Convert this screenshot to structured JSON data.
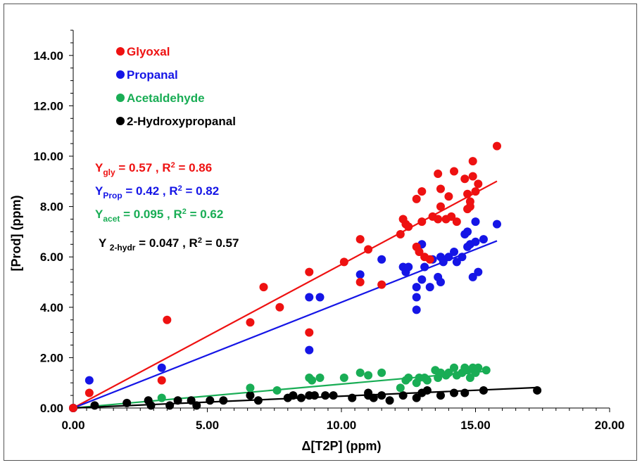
{
  "chart_data": {
    "type": "scatter",
    "xlabel": "Δ[T2P] (ppm)",
    "ylabel": "[Prod] (ppm)",
    "xlim": [
      0,
      20
    ],
    "ylim": [
      0,
      15
    ],
    "x_ticks": [
      "0.00",
      "5.00",
      "10.00",
      "15.00",
      "20.00"
    ],
    "y_ticks": [
      "0.00",
      "2.00",
      "4.00",
      "6.00",
      "8.00",
      "10.00",
      "12.00",
      "14.00"
    ],
    "legend_position": "top-left",
    "series": [
      {
        "name": "Glyoxal",
        "color": "#ee1111",
        "slope": 0.57,
        "x": [
          0,
          0.6,
          3.3,
          3.5,
          6.6,
          7.1,
          7.7,
          8.8,
          8.8,
          10.1,
          10.7,
          10.7,
          11.0,
          11.5,
          12.2,
          12.3,
          12.4,
          12.5,
          12.8,
          12.8,
          12.9,
          13.0,
          13.0,
          13.1,
          13.3,
          13.4,
          13.6,
          13.6,
          13.7,
          13.7,
          13.9,
          14.0,
          14.1,
          14.2,
          14.3,
          14.6,
          14.7,
          14.7,
          14.8,
          14.8,
          14.9,
          14.9,
          15.0,
          15.1,
          15.8
        ],
        "y": [
          0,
          0.6,
          1.1,
          3.5,
          3.4,
          4.8,
          4.0,
          5.4,
          3.0,
          5.8,
          6.7,
          5.0,
          6.3,
          4.9,
          6.9,
          7.5,
          7.3,
          7.2,
          8.3,
          6.4,
          6.2,
          7.4,
          8.6,
          6.0,
          5.9,
          7.6,
          7.5,
          9.3,
          8.7,
          8.0,
          7.5,
          8.4,
          7.6,
          9.4,
          7.4,
          9.1,
          8.5,
          7.9,
          8.2,
          8.0,
          9.8,
          9.2,
          8.6,
          8.9,
          10.4
        ]
      },
      {
        "name": "Propanal",
        "color": "#1515e6",
        "slope": 0.42,
        "x": [
          0,
          0.6,
          3.3,
          8.8,
          8.8,
          9.2,
          10.7,
          11.5,
          12.3,
          12.4,
          12.5,
          12.8,
          12.8,
          12.8,
          13.0,
          13.0,
          13.1,
          13.3,
          13.4,
          13.6,
          13.7,
          13.7,
          13.8,
          14.0,
          14.2,
          14.3,
          14.5,
          14.6,
          14.7,
          14.7,
          14.8,
          14.9,
          15.0,
          15.0,
          15.1,
          15.3,
          15.8
        ],
        "y": [
          0,
          1.1,
          1.6,
          4.4,
          2.3,
          4.4,
          5.3,
          5.9,
          5.6,
          5.4,
          5.6,
          4.4,
          3.9,
          4.8,
          6.5,
          5.1,
          5.6,
          4.8,
          5.9,
          5.2,
          6.0,
          5.0,
          5.8,
          6.0,
          6.2,
          5.8,
          6.0,
          6.9,
          7.0,
          6.4,
          6.5,
          5.2,
          7.4,
          6.6,
          5.4,
          6.7,
          7.3
        ]
      },
      {
        "name": "Acetaldehyde",
        "color": "#19ad55",
        "slope": 0.095,
        "x": [
          0,
          3.3,
          6.6,
          7.6,
          8.8,
          8.9,
          9.2,
          10.1,
          10.7,
          11.0,
          11.5,
          12.2,
          12.4,
          12.5,
          12.8,
          12.9,
          13.1,
          13.2,
          13.5,
          13.6,
          13.7,
          13.9,
          14.0,
          14.2,
          14.3,
          14.5,
          14.6,
          14.7,
          14.8,
          14.9,
          15.0,
          15.1,
          15.4
        ],
        "y": [
          0,
          0.4,
          0.8,
          0.7,
          1.2,
          1.1,
          1.2,
          1.2,
          1.4,
          1.3,
          1.4,
          0.8,
          1.1,
          1.2,
          1.0,
          1.2,
          1.2,
          1.1,
          1.5,
          1.2,
          1.4,
          1.3,
          1.4,
          1.6,
          1.3,
          1.4,
          1.6,
          1.5,
          1.2,
          1.6,
          1.4,
          1.6,
          1.5
        ]
      },
      {
        "name": "2-Hydroxypropanal",
        "color": "#000000",
        "slope": 0.047,
        "x": [
          0,
          0.8,
          2.0,
          2.8,
          2.9,
          3.6,
          3.9,
          4.4,
          4.6,
          5.1,
          5.6,
          6.6,
          6.9,
          8.0,
          8.2,
          8.5,
          8.8,
          9.0,
          9.4,
          9.7,
          10.4,
          11.0,
          11.0,
          11.2,
          11.5,
          11.8,
          12.3,
          12.8,
          13.0,
          13.2,
          13.7,
          14.2,
          14.6,
          15.3,
          17.3
        ],
        "y": [
          0,
          0.1,
          0.2,
          0.3,
          0.1,
          0.1,
          0.3,
          0.3,
          0.1,
          0.3,
          0.3,
          0.5,
          0.3,
          0.4,
          0.5,
          0.4,
          0.5,
          0.5,
          0.5,
          0.5,
          0.4,
          0.6,
          0.5,
          0.4,
          0.5,
          0.3,
          0.5,
          0.4,
          0.6,
          0.7,
          0.5,
          0.6,
          0.6,
          0.7,
          0.7
        ]
      }
    ],
    "equations": [
      {
        "y": "Y",
        "sub": "gly",
        "rest": " = 0.57 , R",
        "sup": "2",
        "tail": " = 0.86",
        "color": "#ee1111"
      },
      {
        "y": "Y",
        "sub": "Prop",
        "rest": " = 0.42 , R",
        "sup": "2",
        "tail": " = 0.82",
        "color": "#1515e6"
      },
      {
        "y": "Y",
        "sub": "acet",
        "rest": " = 0.095 , R",
        "sup": "2",
        "tail": " = 0.62",
        "color": "#19ad55"
      },
      {
        "y": "Y ",
        "sub": "2-hydr",
        "rest": " = 0.047 , R",
        "sup": "2",
        "tail": " = 0.57",
        "color": "#000000"
      }
    ]
  }
}
